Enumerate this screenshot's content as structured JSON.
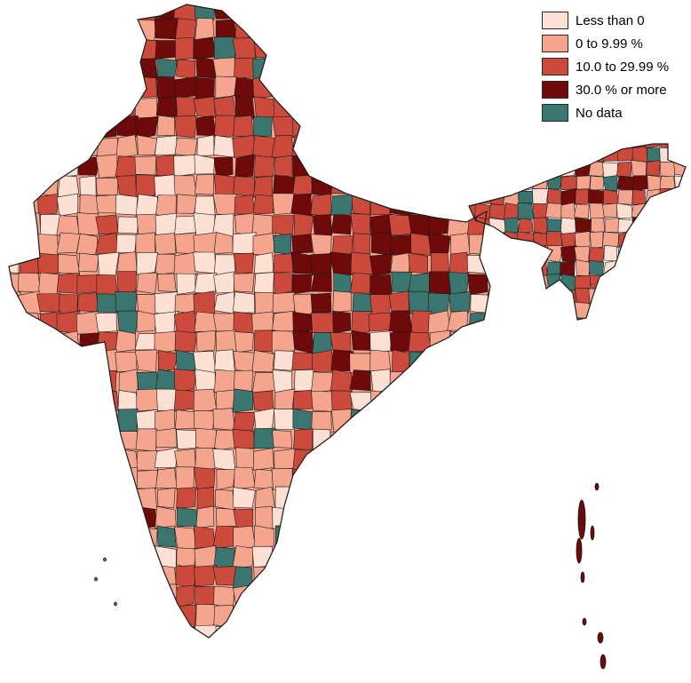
{
  "legend": {
    "items": [
      {
        "label": "Less than 0",
        "color": "#fce0d4"
      },
      {
        "label": "0 to 9.99 %",
        "color": "#f5a58d"
      },
      {
        "label": "10.0 to 29.99 %",
        "color": "#cc4a3c"
      },
      {
        "label": "30.0 % or more",
        "color": "#6e0a0a"
      },
      {
        "label": "No data",
        "color": "#3a7570"
      }
    ]
  },
  "map": {
    "subject": "India districts choropleth",
    "border_color": "#1a1a1a"
  }
}
